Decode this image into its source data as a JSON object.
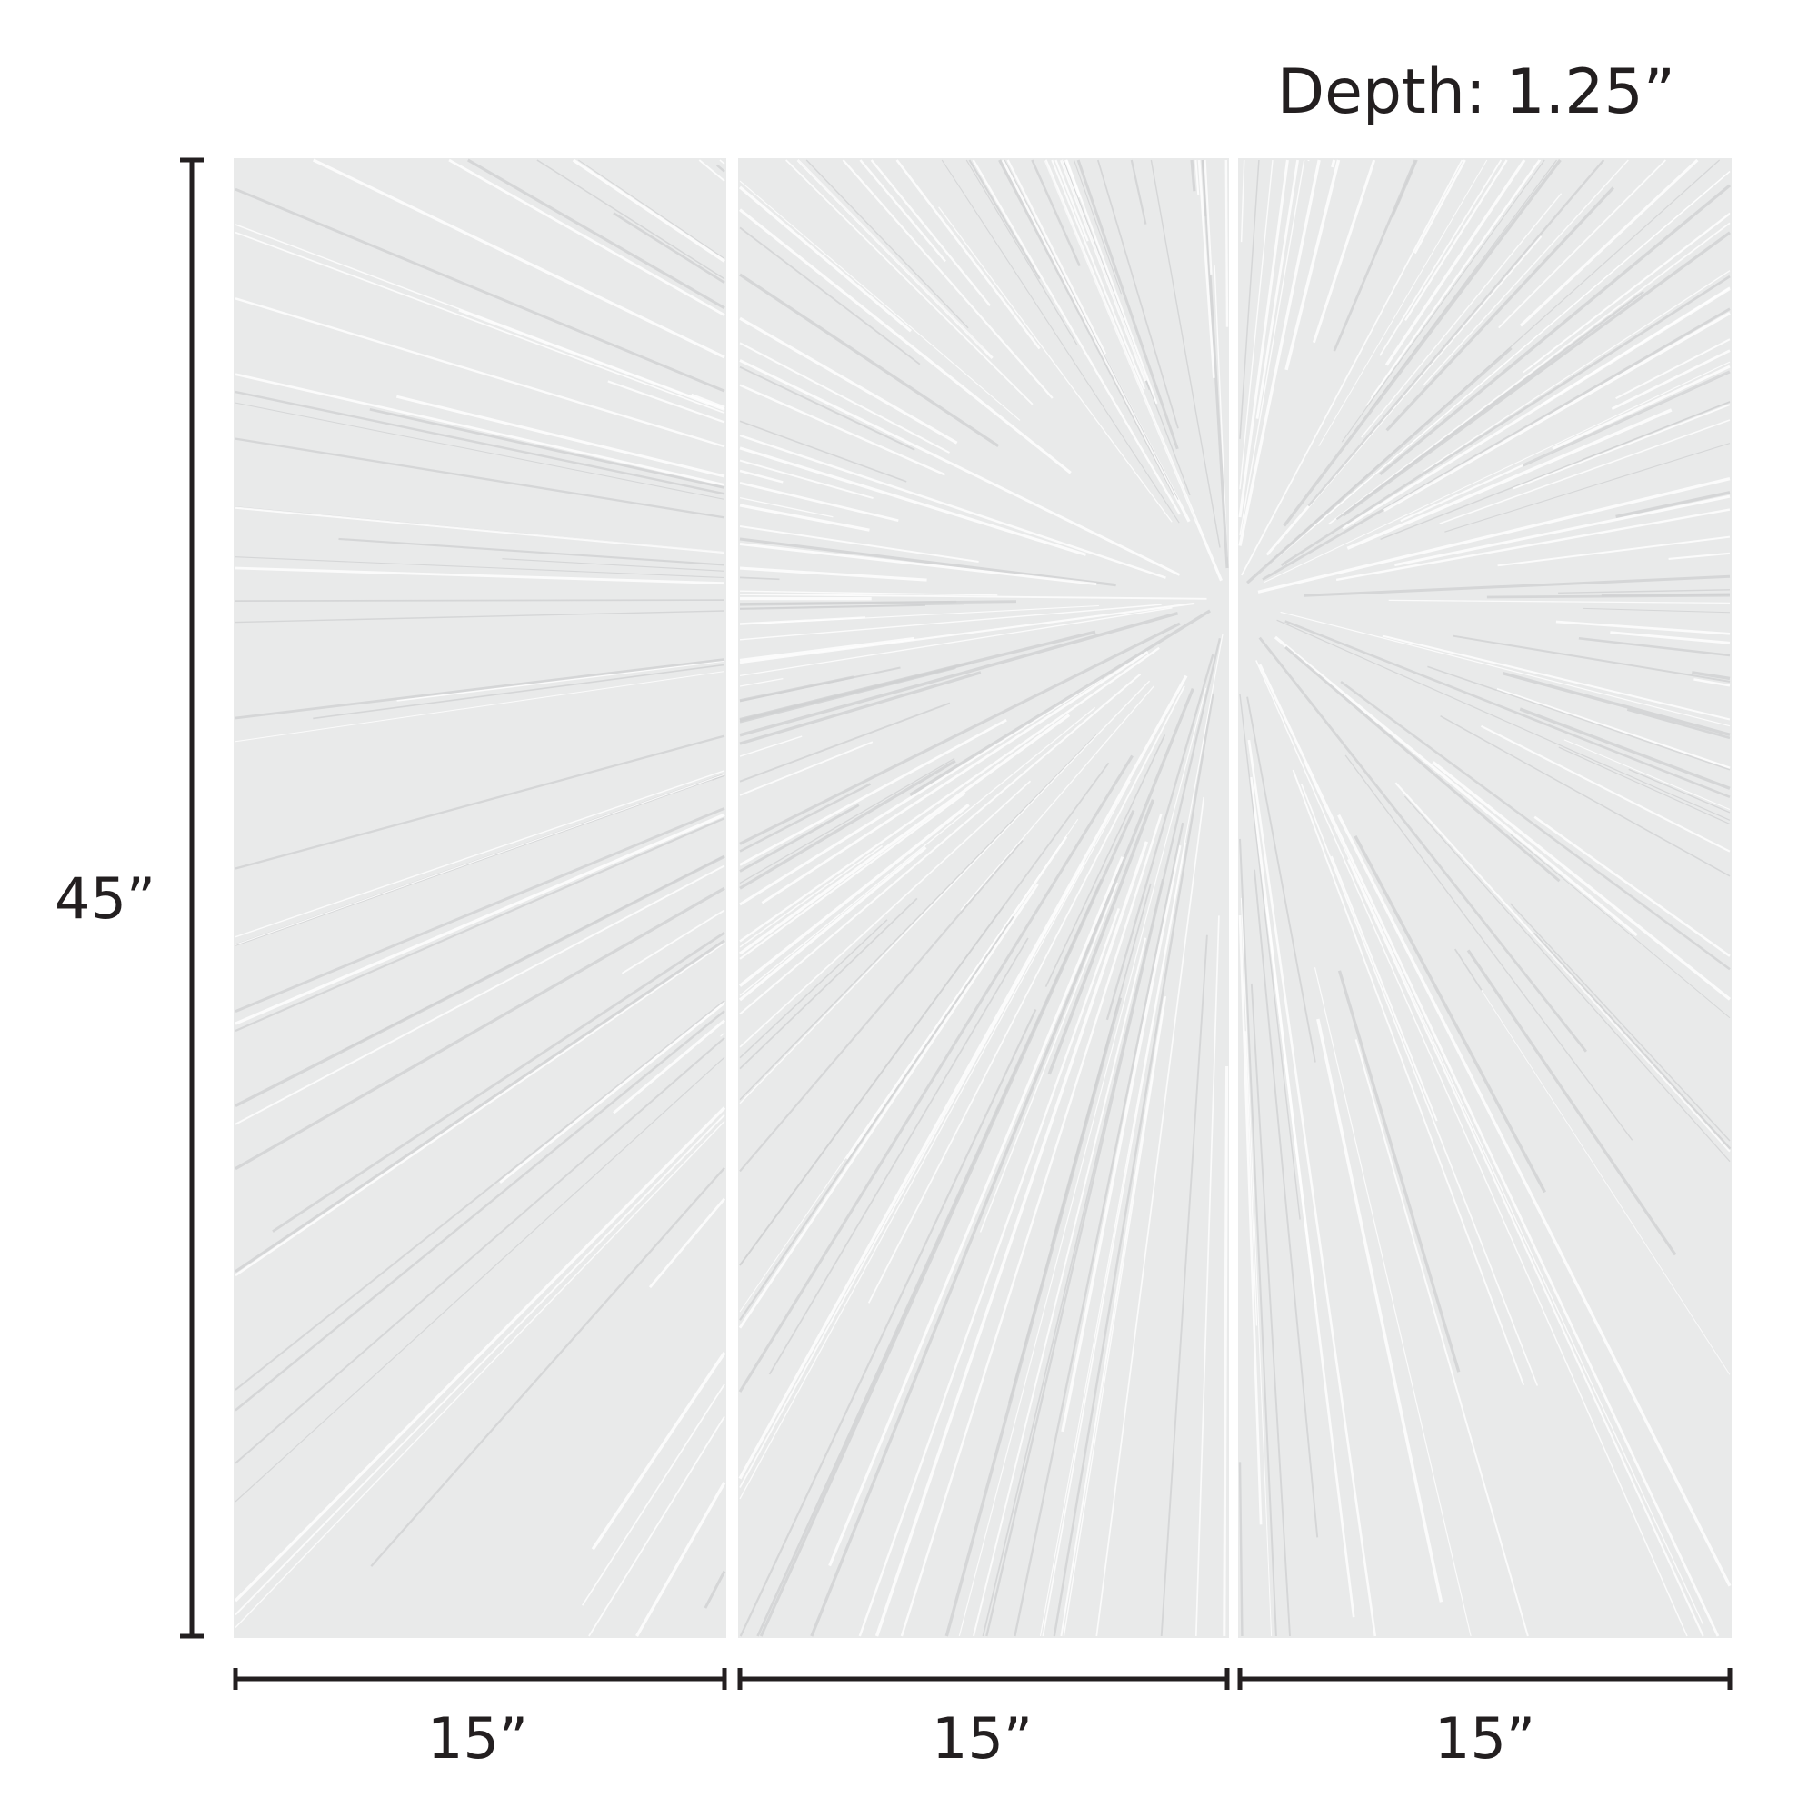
{
  "depth_label": "Depth: 1.25”",
  "height_label": "45”",
  "panels": [
    {
      "width_label": "15”"
    },
    {
      "width_label": "15”"
    },
    {
      "width_label": "15”"
    }
  ],
  "colors": {
    "panel": "#e9eaea",
    "stroke_light": "#ffffff",
    "stroke_shadow": "#cfd1d2",
    "dimension_line": "#231f20"
  }
}
